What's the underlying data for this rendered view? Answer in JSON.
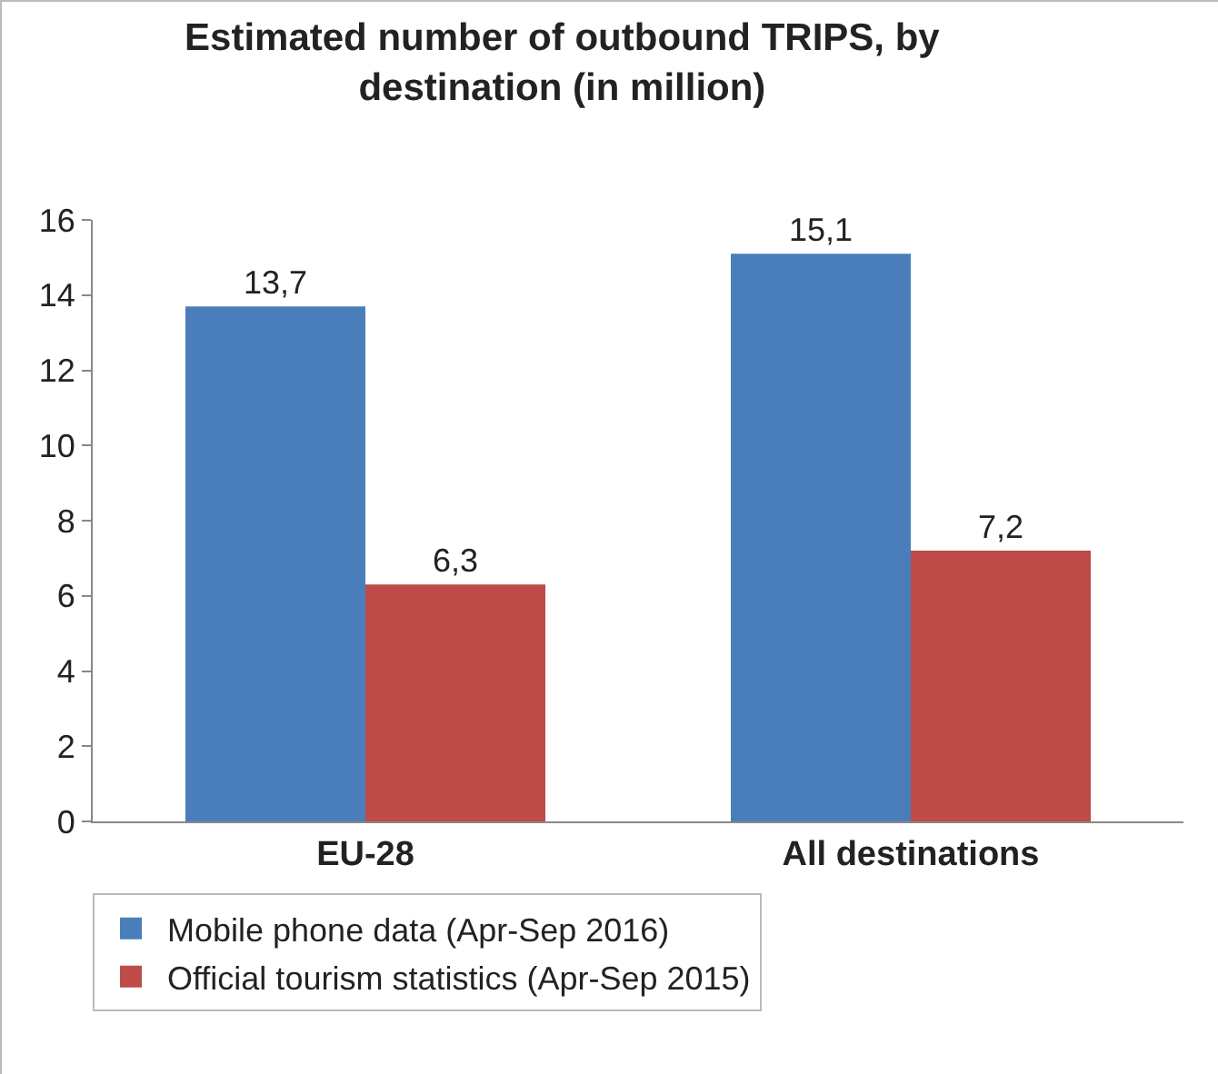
{
  "chart_data": {
    "type": "bar",
    "title": "Estimated number of outbound TRIPS, by destination (in million)",
    "categories": [
      "EU-28",
      "All destinations"
    ],
    "series": [
      {
        "name": "Mobile phone data (Apr-Sep 2016)",
        "color": "#4a7ebb",
        "values": [
          13.7,
          15.1
        ],
        "value_labels": [
          "13,7",
          "15,1"
        ]
      },
      {
        "name": "Official tourism statistics (Apr-Sep 2015)",
        "color": "#be4b48",
        "values": [
          6.3,
          7.2
        ],
        "value_labels": [
          "6,3",
          "7,2"
        ]
      }
    ],
    "ylim": [
      0,
      16
    ],
    "yticks": [
      0,
      2,
      4,
      6,
      8,
      10,
      12,
      14,
      16
    ],
    "grid": false,
    "legend": "bottom left"
  }
}
